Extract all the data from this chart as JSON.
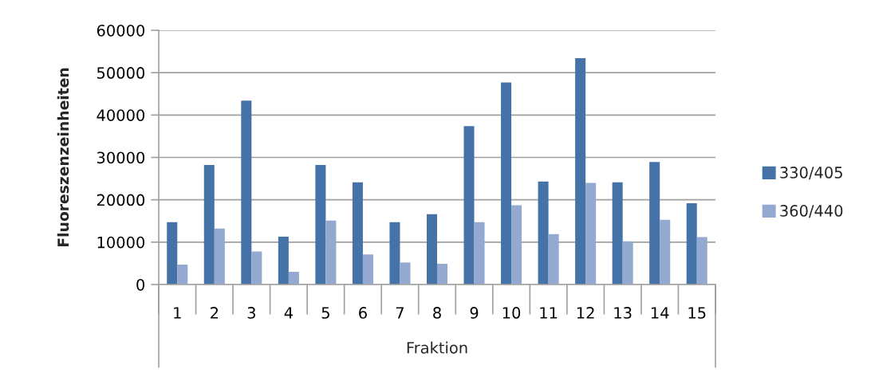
{
  "chart_data": {
    "type": "bar",
    "xlabel": "Fraktion",
    "ylabel": "Fluoreszenzeinheiten",
    "categories": [
      "1",
      "2",
      "3",
      "4",
      "5",
      "6",
      "7",
      "8",
      "9",
      "10",
      "11",
      "12",
      "13",
      "14",
      "15"
    ],
    "series": [
      {
        "name": "330/405",
        "color": "#4573a7",
        "values": [
          14700,
          28200,
          43400,
          11300,
          28200,
          24100,
          14700,
          16600,
          37400,
          47700,
          24300,
          53400,
          24100,
          28900,
          19200
        ]
      },
      {
        "name": "360/440",
        "color": "#94a9d0",
        "values": [
          4700,
          13200,
          7800,
          3000,
          15100,
          7100,
          5200,
          4900,
          14700,
          18700,
          11900,
          24000,
          10200,
          15300,
          11200
        ]
      }
    ],
    "ylim": [
      0,
      60000
    ],
    "yticks": [
      0,
      10000,
      20000,
      30000,
      40000,
      50000,
      60000
    ],
    "grid": "y",
    "legend": "right"
  }
}
